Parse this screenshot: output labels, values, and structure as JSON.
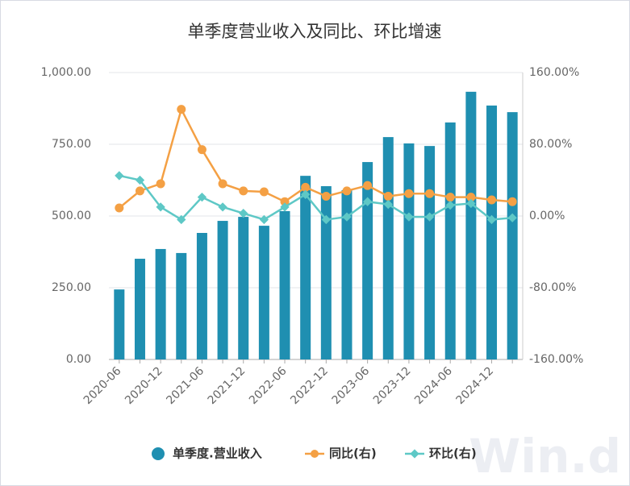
{
  "chart_data": {
    "type": "bar-line",
    "title": "单季度营业收入及同比、环比增速",
    "categories": [
      "2020-06",
      null,
      "2020-12",
      null,
      "2021-06",
      null,
      "2021-12",
      null,
      "2022-06",
      null,
      "2022-12",
      null,
      "2023-06",
      null,
      "2023-12",
      null,
      "2024-06",
      null,
      "2024-12",
      null
    ],
    "series": [
      {
        "name": "单季度.营业收入",
        "type": "bar",
        "color": "#1f8fb1",
        "values": [
          244,
          351,
          385,
          371,
          441,
          483,
          497,
          466,
          517,
          640,
          604,
          590,
          688,
          775,
          753,
          744,
          826,
          933,
          885,
          862
        ]
      },
      {
        "name": "同比(右)",
        "type": "line",
        "axis": "y2",
        "color": "#f4a044",
        "values": [
          9,
          28,
          36,
          119,
          74,
          36,
          28,
          27,
          16,
          32,
          22,
          28,
          34,
          22,
          25,
          25,
          21,
          21,
          18,
          16
        ]
      },
      {
        "name": "环比(右)",
        "type": "line",
        "axis": "y2",
        "color": "#5ec8c6",
        "values": [
          45,
          40,
          10,
          -4,
          21,
          10,
          3,
          -4,
          10,
          24,
          -4,
          -1,
          16,
          13,
          -1,
          -1,
          12,
          14,
          -4,
          -2
        ]
      }
    ],
    "ylim": [
      0,
      1000
    ],
    "yticks": [
      {
        "value": 0,
        "label": "0.00"
      },
      {
        "value": 250,
        "label": "250.00"
      },
      {
        "value": 500,
        "label": "500.00"
      },
      {
        "value": 750,
        "label": "750.00"
      },
      {
        "value": 1000,
        "label": "1,000.00"
      }
    ],
    "y2lim": [
      -160,
      160
    ],
    "y2ticks": [
      {
        "value": -160,
        "label": "-160.00%"
      },
      {
        "value": -80,
        "label": "-80.00%"
      },
      {
        "value": 0,
        "label": "0.00%"
      },
      {
        "value": 80,
        "label": "80.00%"
      },
      {
        "value": 160,
        "label": "160.00%"
      }
    ],
    "grid": true,
    "watermark": "Win.d"
  }
}
